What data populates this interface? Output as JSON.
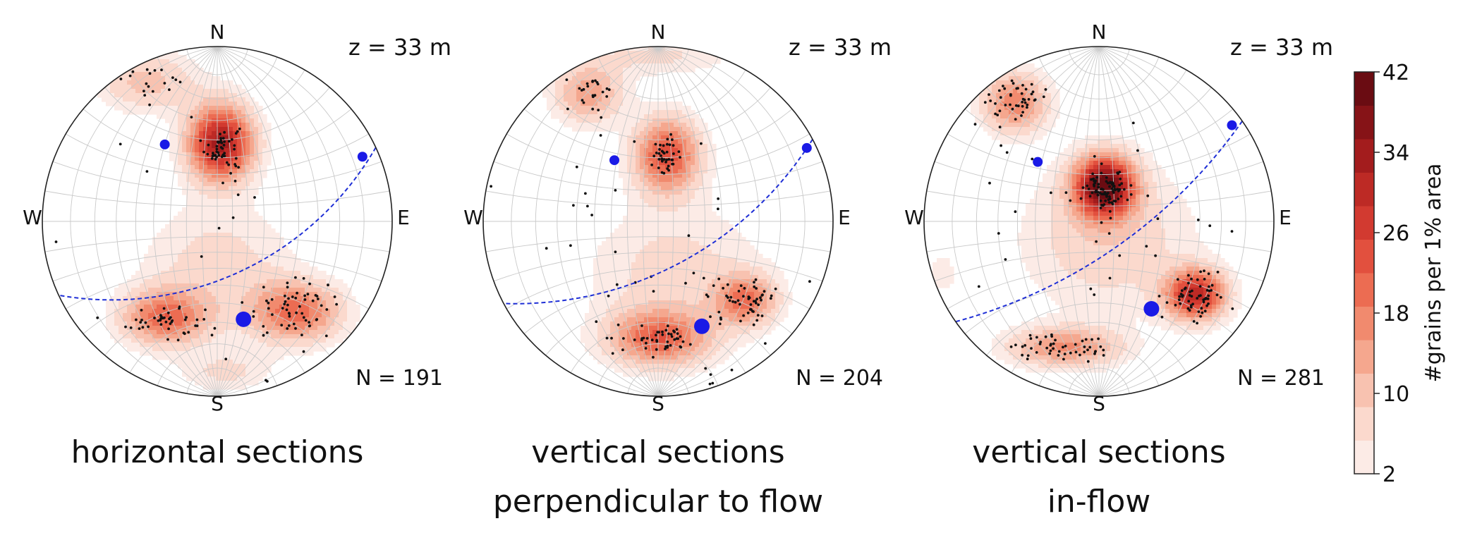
{
  "chart_data": {
    "type": "stereonet-density",
    "colorbar": {
      "label": "#grains per 1% area",
      "range": [
        2,
        42
      ],
      "ticks": [
        "42",
        "34",
        "26",
        "18",
        "10",
        "2"
      ],
      "colors": [
        "#fcebe6",
        "#fbd9cd",
        "#f8c2b0",
        "#f5a78e",
        "#f18a6e",
        "#ec6c52",
        "#e2503e",
        "#d23a30",
        "#bd2a25",
        "#a31c1d",
        "#861317",
        "#6a0c12"
      ]
    },
    "panels": [
      {
        "direction_labels": {
          "n": "N",
          "s": "S",
          "w": "W",
          "e": "E"
        },
        "depth_label": "z = 33 m",
        "count_label": "N = 191",
        "caption_lines": [
          "horizontal sections"
        ],
        "density_peaks": [
          {
            "x": 0.02,
            "y": 0.45,
            "sx": 0.13,
            "sy": 0.15,
            "level": 34
          },
          {
            "x": -0.3,
            "y": -0.55,
            "sx": 0.17,
            "sy": 0.11,
            "level": 20
          },
          {
            "x": 0.45,
            "y": -0.52,
            "sx": 0.18,
            "sy": 0.12,
            "level": 20
          },
          {
            "x": -0.4,
            "y": 0.8,
            "sx": 0.2,
            "sy": 0.12,
            "level": 10
          },
          {
            "x": 0.05,
            "y": -0.86,
            "sx": 0.18,
            "sy": 0.08,
            "level": 6
          },
          {
            "x": 0.0,
            "y": -0.25,
            "sx": 0.3,
            "sy": 0.25,
            "level": 7
          }
        ],
        "point_clusters": [
          {
            "x": 0.03,
            "y": 0.42,
            "sx": 0.05,
            "sy": 0.07,
            "n": 50
          },
          {
            "x": -0.3,
            "y": -0.57,
            "sx": 0.11,
            "sy": 0.05,
            "n": 45
          },
          {
            "x": 0.43,
            "y": -0.5,
            "sx": 0.14,
            "sy": 0.08,
            "n": 60
          },
          {
            "x": -0.4,
            "y": 0.82,
            "sx": 0.09,
            "sy": 0.06,
            "n": 22
          },
          {
            "x": 0.3,
            "y": -0.9,
            "sx": 0.02,
            "sy": 0.03,
            "n": 4
          },
          {
            "x": -0.1,
            "y": -0.1,
            "sx": 0.4,
            "sy": 0.3,
            "n": 10
          }
        ],
        "great_circle": {
          "strike": 65,
          "dip": 55
        },
        "small_poles": [
          [
            -0.3,
            0.44
          ],
          [
            0.83,
            0.37
          ]
        ],
        "large_pole": [
          0.15,
          -0.56
        ]
      },
      {
        "direction_labels": {
          "n": "N",
          "s": "S",
          "w": "W",
          "e": "E"
        },
        "depth_label": "z = 33 m",
        "count_label": "N = 204",
        "caption_lines": [
          "vertical sections",
          "perpendicular to flow"
        ],
        "density_peaks": [
          {
            "x": 0.05,
            "y": 0.38,
            "sx": 0.13,
            "sy": 0.15,
            "level": 24
          },
          {
            "x": 0.0,
            "y": -0.67,
            "sx": 0.2,
            "sy": 0.11,
            "level": 20
          },
          {
            "x": 0.5,
            "y": -0.45,
            "sx": 0.12,
            "sy": 0.1,
            "level": 18
          },
          {
            "x": -0.4,
            "y": 0.73,
            "sx": 0.14,
            "sy": 0.12,
            "level": 14
          },
          {
            "x": 0.1,
            "y": -0.3,
            "sx": 0.35,
            "sy": 0.28,
            "level": 7
          },
          {
            "x": 0.0,
            "y": 0.95,
            "sx": 0.3,
            "sy": 0.08,
            "level": 6
          }
        ],
        "point_clusters": [
          {
            "x": 0.05,
            "y": 0.38,
            "sx": 0.04,
            "sy": 0.05,
            "n": 40
          },
          {
            "x": 0.0,
            "y": -0.68,
            "sx": 0.12,
            "sy": 0.04,
            "n": 45
          },
          {
            "x": 0.5,
            "y": -0.45,
            "sx": 0.09,
            "sy": 0.07,
            "n": 55
          },
          {
            "x": -0.38,
            "y": 0.75,
            "sx": 0.08,
            "sy": 0.06,
            "n": 25
          },
          {
            "x": 0.3,
            "y": -0.9,
            "sx": 0.04,
            "sy": 0.03,
            "n": 6
          },
          {
            "x": -0.1,
            "y": -0.1,
            "sx": 0.45,
            "sy": 0.35,
            "n": 33
          }
        ],
        "great_circle": {
          "strike": 62,
          "dip": 60
        },
        "small_poles": [
          [
            -0.25,
            0.35
          ],
          [
            0.85,
            0.42
          ]
        ],
        "large_pole": [
          0.25,
          -0.6
        ]
      },
      {
        "direction_labels": {
          "n": "N",
          "s": "S",
          "w": "W",
          "e": "E"
        },
        "depth_label": "z = 33 m",
        "count_label": "N = 281",
        "caption_lines": [
          "vertical sections",
          "in-flow"
        ],
        "density_peaks": [
          {
            "x": 0.03,
            "y": 0.2,
            "sx": 0.12,
            "sy": 0.12,
            "level": 40
          },
          {
            "x": 0.55,
            "y": -0.42,
            "sx": 0.12,
            "sy": 0.1,
            "level": 30
          },
          {
            "x": -0.2,
            "y": -0.72,
            "sx": 0.22,
            "sy": 0.08,
            "level": 16
          },
          {
            "x": -0.48,
            "y": 0.68,
            "sx": 0.13,
            "sy": 0.12,
            "level": 18
          },
          {
            "x": 0.05,
            "y": -0.1,
            "sx": 0.35,
            "sy": 0.3,
            "level": 8
          },
          {
            "x": -0.9,
            "y": -0.3,
            "sx": 0.06,
            "sy": 0.08,
            "level": 5
          }
        ],
        "point_clusters": [
          {
            "x": 0.05,
            "y": 0.18,
            "sx": 0.06,
            "sy": 0.05,
            "n": 90
          },
          {
            "x": 0.56,
            "y": -0.43,
            "sx": 0.08,
            "sy": 0.07,
            "n": 60
          },
          {
            "x": -0.2,
            "y": -0.72,
            "sx": 0.16,
            "sy": 0.04,
            "n": 50
          },
          {
            "x": -0.47,
            "y": 0.7,
            "sx": 0.08,
            "sy": 0.06,
            "n": 45
          },
          {
            "x": -0.1,
            "y": 0.0,
            "sx": 0.45,
            "sy": 0.35,
            "n": 36
          }
        ],
        "great_circle": {
          "strike": 55,
          "dip": 70
        },
        "small_poles": [
          [
            -0.35,
            0.34
          ],
          [
            0.76,
            0.55
          ]
        ],
        "large_pole": [
          0.3,
          -0.5
        ]
      }
    ]
  }
}
